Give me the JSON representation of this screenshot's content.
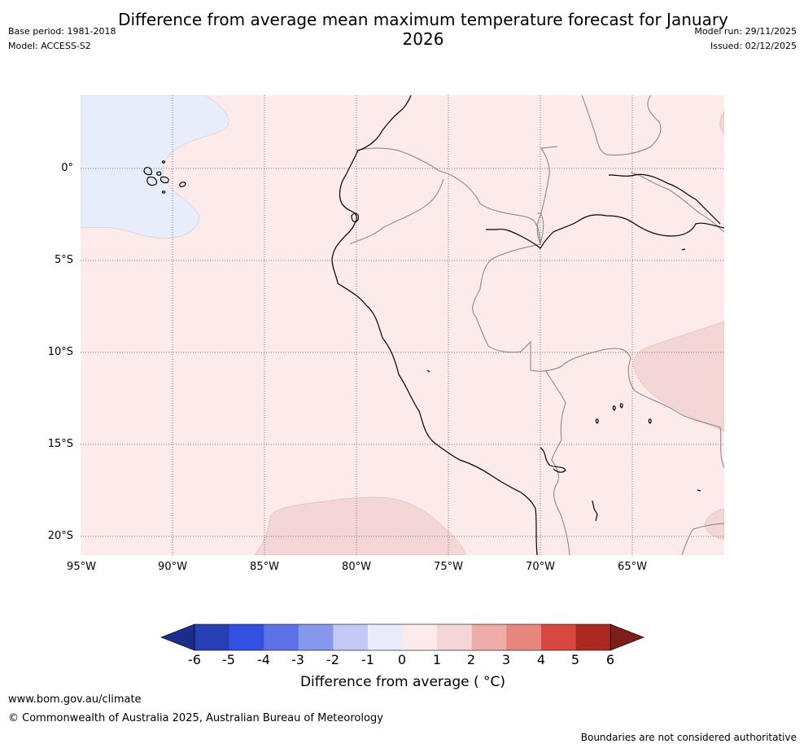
{
  "title": "Difference from average mean maximum temperature forecast for January 2026",
  "meta_left": {
    "base_period": "Base period: 1981-2018",
    "model": "Model: ACCESS-S2"
  },
  "meta_right": {
    "model_run": "Model run: 29/11/2025",
    "issued": "Issued: 02/12/2025"
  },
  "map": {
    "lat_labels": [
      "0°",
      "5°S",
      "10°S",
      "15°S",
      "20°S"
    ],
    "lon_labels": [
      "95°W",
      "90°W",
      "85°W",
      "80°W",
      "75°W",
      "70°W",
      "65°W"
    ],
    "region_colors": {
      "background": "#fcebea",
      "cool_anomaly": "#e8edfb",
      "warm_anomaly": "#f3d6d5"
    },
    "line_colors": {
      "grid": "#777777",
      "coast": "#000000",
      "border": "#808080"
    }
  },
  "colorbar": {
    "ticks": [
      "-6",
      "-5",
      "-4",
      "-3",
      "-2",
      "-1",
      "0",
      "1",
      "2",
      "3",
      "4",
      "5",
      "6"
    ],
    "colors": [
      "#1f2d8a",
      "#263fb5",
      "#3350e0",
      "#5d72e8",
      "#8797ec",
      "#c3c9f4",
      "#e9ebfb",
      "#fcebea",
      "#f3d6d5",
      "#edaca8",
      "#e7867f",
      "#d8483f",
      "#ad2a24",
      "#7c1e1a"
    ],
    "label": "Difference from average ( °C)"
  },
  "footer": {
    "url": "www.bom.gov.au/climate",
    "copyright": "© Commonwealth of Australia 2025, Australian Bureau of Meteorology",
    "disclaimer": "Boundaries are not considered authoritative"
  }
}
